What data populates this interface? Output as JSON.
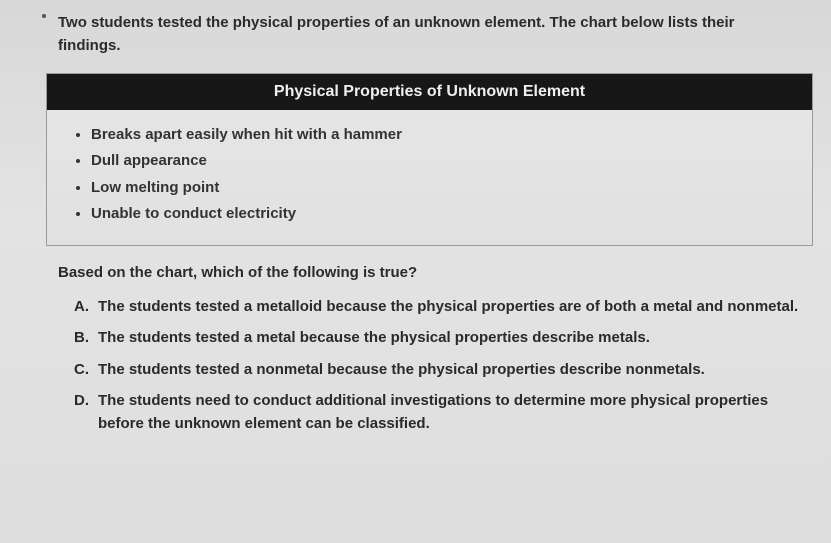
{
  "intro": "Two students tested the physical properties of an unknown element. The chart below lists their findings.",
  "chart": {
    "header": "Physical Properties of Unknown Element",
    "items": [
      "Breaks apart easily when hit with a hammer",
      "Dull appearance",
      "Low melting point",
      "Unable to conduct electricity"
    ]
  },
  "question": "Based on the chart, which of the following is true?",
  "options": [
    {
      "letter": "A.",
      "text": "The students tested a metalloid because the physical properties are of both a metal and nonmetal."
    },
    {
      "letter": "B.",
      "text": "The students tested a metal because the physical properties describe metals."
    },
    {
      "letter": "C.",
      "text": "The students tested a nonmetal because the physical properties describe nonmetals."
    },
    {
      "letter": "D.",
      "text": "The students need to conduct additional investigations to determine more physical properties before the unknown element can be classified."
    }
  ]
}
